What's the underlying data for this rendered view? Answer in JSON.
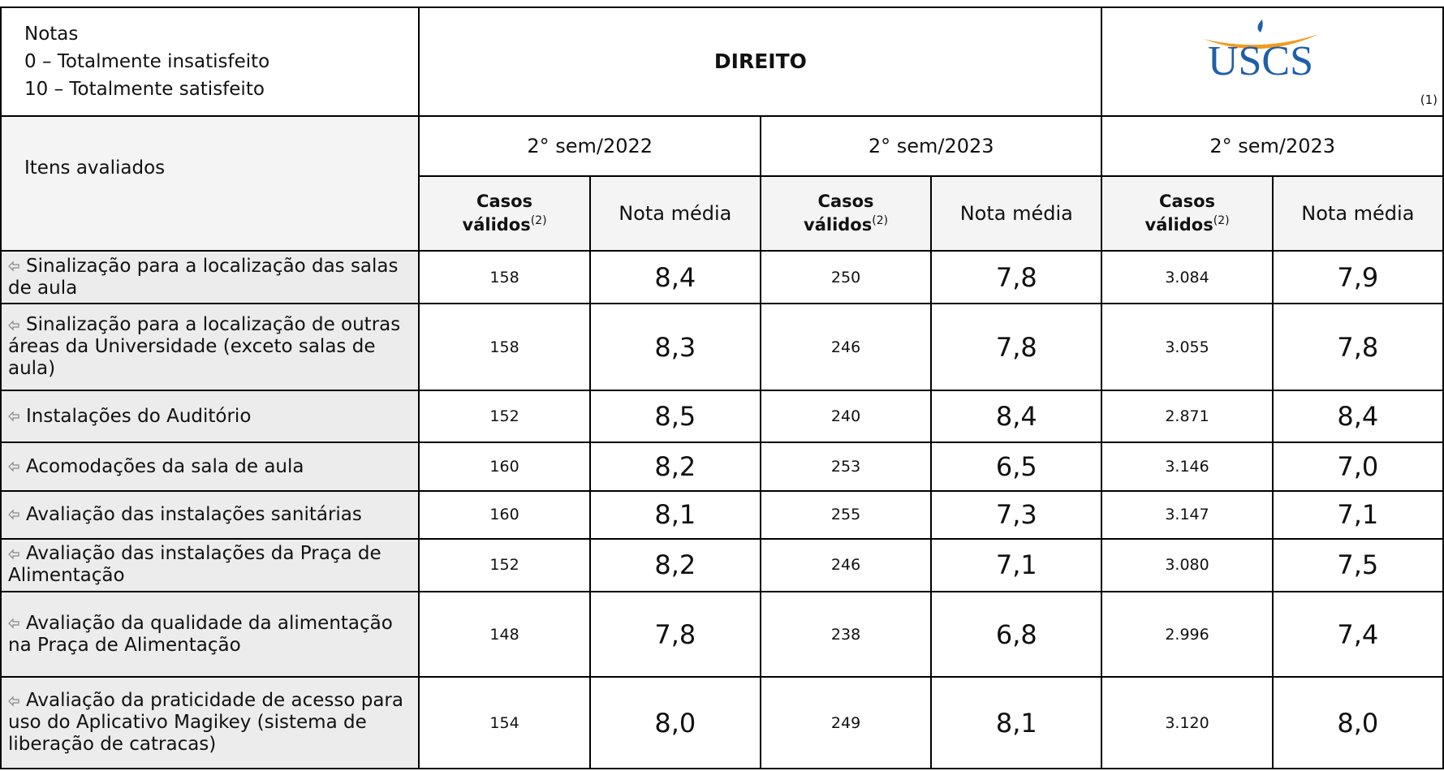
{
  "header": {
    "notes": [
      "Notas",
      "0 – Totalmente insatisfeito",
      "10 – Totalmente satisfeito"
    ],
    "title": "DIREITO",
    "logo": "USCS",
    "footnote": "(1)"
  },
  "table": {
    "row_label_header": "Itens avaliados",
    "periods": [
      "2° sem/2022",
      "2° sem/2023",
      "2° sem/2023"
    ],
    "cases_header": "Casos válidos",
    "cases_note": "(2)",
    "mean_header": "Nota média",
    "rows": [
      {
        "label": "Sinalização para a localização das salas de aula",
        "values": [
          "158",
          "8,4",
          "250",
          "7,8",
          "3.084",
          "7,9"
        ]
      },
      {
        "label": "Sinalização para a localização de outras áreas da Universidade (exceto salas de aula)",
        "values": [
          "158",
          "8,3",
          "246",
          "7,8",
          "3.055",
          "7,8"
        ]
      },
      {
        "label": "Instalações do Auditório",
        "values": [
          "152",
          "8,5",
          "240",
          "8,4",
          "2.871",
          "8,4"
        ]
      },
      {
        "label": "Acomodações da sala de aula",
        "values": [
          "160",
          "8,2",
          "253",
          "6,5",
          "3.146",
          "7,0"
        ]
      },
      {
        "label": "Avaliação das instalações sanitárias",
        "values": [
          "160",
          "8,1",
          "255",
          "7,3",
          "3.147",
          "7,1"
        ]
      },
      {
        "label": "Avaliação das instalações da Praça de Alimentação",
        "values": [
          "152",
          "8,2",
          "246",
          "7,1",
          "3.080",
          "7,5"
        ]
      },
      {
        "label": "Avaliação da qualidade da alimentação na Praça de Alimentação",
        "values": [
          "148",
          "7,8",
          "238",
          "6,8",
          "2.996",
          "7,4"
        ]
      },
      {
        "label": "Avaliação da praticidade de acesso para uso do Aplicativo Magikey (sistema de liberação de catracas)",
        "values": [
          "154",
          "8,0",
          "249",
          "8,1",
          "3.120",
          "8,0"
        ]
      }
    ]
  }
}
